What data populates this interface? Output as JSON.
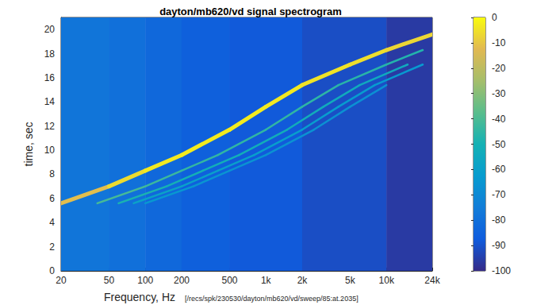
{
  "chart_data": {
    "type": "spectrogram",
    "title": "dayton/mb620/vd signal spectrogram",
    "x_label": "Frequency, Hz",
    "annotation": "[/recs/spk/230530/dayton/mb620/vd/sweep/85:at.2035]",
    "y_label": "time, sec",
    "log": "x",
    "grid": false,
    "xlim": [
      20,
      24000
    ],
    "xticks": [
      20,
      50,
      100,
      200,
      500,
      {
        "value": 1000,
        "label": "1k"
      },
      {
        "value": 2000,
        "label": "2k"
      },
      {
        "value": 5000,
        "label": "5k"
      },
      {
        "value": 10000,
        "label": "10k"
      },
      {
        "value": 24000,
        "label": "24k"
      }
    ],
    "ylim": [
      0,
      21
    ],
    "yticks": [
      0,
      2,
      4,
      6,
      8,
      10,
      12,
      14,
      16,
      18,
      20
    ],
    "colorbar": {
      "range": [
        -100,
        0
      ],
      "ticks": [
        -100,
        -90,
        -80,
        -70,
        -60,
        -50,
        -40,
        -30,
        -20,
        -10,
        0
      ]
    },
    "cells": {
      "x_edges": [
        20,
        50,
        100,
        200,
        500,
        2000,
        10000,
        24000
      ],
      "y_edges": [
        0,
        21
      ],
      "values": [
        [
          -78,
          -80,
          -83,
          -86,
          -88,
          -91,
          -96
        ]
      ]
    },
    "sweeps": [
      {
        "x": [
          20,
          50,
          100,
          200,
          500,
          1000,
          2000,
          5000,
          10000,
          24000
        ],
        "y": [
          5.6,
          7.0,
          8.3,
          9.6,
          11.7,
          13.6,
          15.4,
          17.1,
          18.3,
          19.6
        ],
        "level": [
          -15,
          -8,
          -4,
          -3,
          -3,
          -3,
          -4,
          -5,
          -6,
          -8
        ]
      },
      {
        "x": [
          40,
          100,
          200,
          400,
          1000,
          2000,
          4000,
          10000,
          20000
        ],
        "y": [
          5.6,
          7.0,
          8.3,
          9.6,
          11.7,
          13.6,
          15.4,
          17.1,
          18.3
        ],
        "level": [
          -40,
          -42,
          -44,
          -45,
          -45,
          -45,
          -46,
          -47,
          -48
        ]
      },
      {
        "x": [
          60,
          150,
          300,
          600,
          1500,
          3000,
          6000,
          15000
        ],
        "y": [
          5.6,
          7.0,
          8.3,
          9.6,
          11.7,
          13.6,
          15.4,
          17.1
        ],
        "level": [
          -48,
          -50,
          -52,
          -52,
          -53,
          -53,
          -54,
          -55
        ]
      },
      {
        "x": [
          80,
          200,
          400,
          800,
          2000,
          4000,
          8000,
          20000
        ],
        "y": [
          5.6,
          7.0,
          8.3,
          9.6,
          11.7,
          13.6,
          15.4,
          17.1
        ],
        "level": [
          -58,
          -60,
          -60,
          -61,
          -62,
          -62,
          -63,
          -64
        ]
      },
      {
        "x": [
          100,
          250,
          500,
          1000,
          2500,
          5000,
          10000
        ],
        "y": [
          5.6,
          7.0,
          8.3,
          9.6,
          11.7,
          13.6,
          15.4
        ],
        "level": [
          -63,
          -65,
          -66,
          -66,
          -67,
          -67,
          -68
        ]
      }
    ]
  }
}
